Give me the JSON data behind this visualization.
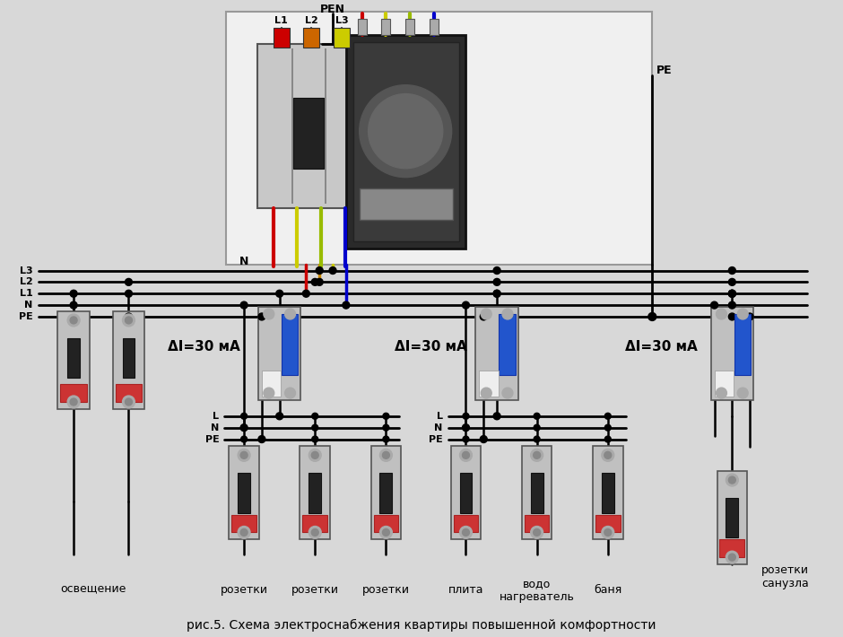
{
  "title": "рис.5. Схема электроснабжения квартиры повышенной комфортности",
  "bg": "#d8d8d8",
  "box_bg": "#e8e8e8",
  "lc": "#111111",
  "bus_labels": [
    "L3",
    "L2",
    "L1",
    "N",
    "PE"
  ],
  "rcd_label": "ΔI=30 мA",
  "bottom_labels": [
    "освещение",
    "розетки",
    "розетки",
    "розетки",
    "плита",
    "водо\nнагреватель",
    "баня",
    "розетки\nсанузла"
  ],
  "sub_labels1": [
    "L",
    "N",
    "PE"
  ],
  "sub_labels2": [
    "L",
    "N",
    "PE"
  ],
  "top_labels": [
    "L1",
    "L2",
    "L3"
  ],
  "pen_text": "PEN",
  "n_text": "N",
  "pe_text": "PE"
}
